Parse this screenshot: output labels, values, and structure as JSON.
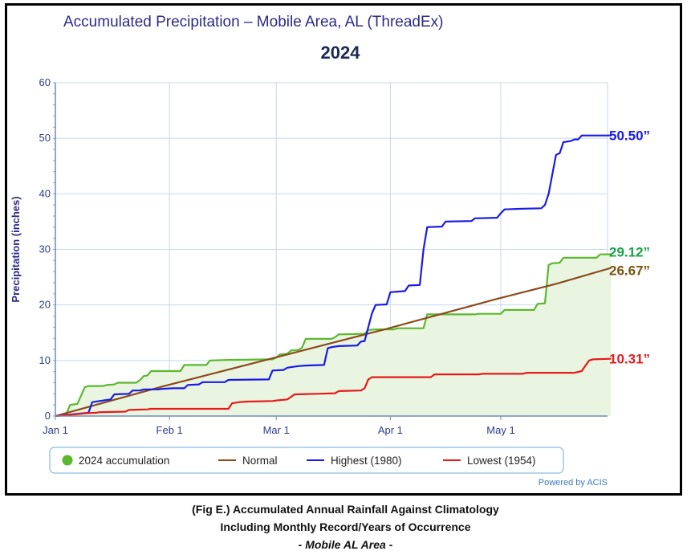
{
  "chart_data": {
    "type": "line",
    "title": "Accumulated Precipitation – Mobile Area, AL (ThreadEx)",
    "subtitle": "2024",
    "ylabel": "Precipitation (inches)",
    "xlabel": "",
    "ylim": [
      0,
      60
    ],
    "yticks": [
      0,
      10,
      20,
      30,
      40,
      50,
      60
    ],
    "xlim": [
      1,
      151
    ],
    "xticks": [
      {
        "label": "Jan 1",
        "day": 1
      },
      {
        "label": "Feb 1",
        "day": 32
      },
      {
        "label": "Mar 1",
        "day": 61
      },
      {
        "label": "Apr 1",
        "day": 92
      },
      {
        "label": "May 1",
        "day": 122
      }
    ],
    "grid": true,
    "legend_position": "bottom",
    "credit": "Powered by ACIS",
    "series": [
      {
        "name": "2024 accumulation",
        "color": "#5cb82e",
        "fill": "#e9f5e1",
        "area": true,
        "points": [
          [
            1,
            0
          ],
          [
            4,
            0.4
          ],
          [
            5,
            2.0
          ],
          [
            6,
            2.1
          ],
          [
            7,
            2.2
          ],
          [
            9,
            5.2
          ],
          [
            10,
            5.4
          ],
          [
            14,
            5.4
          ],
          [
            15,
            5.6
          ],
          [
            17,
            5.7
          ],
          [
            18,
            6.0
          ],
          [
            23,
            6.0
          ],
          [
            24,
            6.5
          ],
          [
            25,
            7.2
          ],
          [
            26,
            7.3
          ],
          [
            27,
            8.1
          ],
          [
            35,
            8.1
          ],
          [
            36,
            9.2
          ],
          [
            42,
            9.2
          ],
          [
            43,
            10.0
          ],
          [
            48,
            10.1
          ],
          [
            60,
            10.2
          ],
          [
            61,
            10.5
          ],
          [
            62,
            11.1
          ],
          [
            64,
            11.2
          ],
          [
            65,
            11.8
          ],
          [
            67,
            11.9
          ],
          [
            68,
            12.3
          ],
          [
            69,
            13.9
          ],
          [
            76,
            13.9
          ],
          [
            77,
            14.2
          ],
          [
            78,
            14.7
          ],
          [
            85,
            14.8
          ],
          [
            86,
            15.5
          ],
          [
            88,
            15.6
          ],
          [
            93,
            15.6
          ],
          [
            94,
            15.8
          ],
          [
            101,
            15.8
          ],
          [
            102,
            18.3
          ],
          [
            115,
            18.3
          ],
          [
            116,
            18.4
          ],
          [
            122,
            18.4
          ],
          [
            123,
            19.1
          ],
          [
            131,
            19.1
          ],
          [
            132,
            20.2
          ],
          [
            134,
            20.3
          ],
          [
            135,
            27.2
          ],
          [
            136,
            27.5
          ],
          [
            138,
            27.6
          ],
          [
            139,
            28.5
          ],
          [
            148,
            28.5
          ],
          [
            149,
            29.1
          ],
          [
            152,
            29.12
          ]
        ]
      },
      {
        "name": "Normal",
        "color": "#8b4a1c",
        "points": [
          [
            1,
            0
          ],
          [
            30,
            5.3
          ],
          [
            60,
            10.4
          ],
          [
            91,
            15.7
          ],
          [
            121,
            21.1
          ],
          [
            137,
            23.8
          ],
          [
            152,
            26.67
          ]
        ]
      },
      {
        "name": "Highest (1980)",
        "color": "#1a1ae6",
        "points": [
          [
            1,
            0
          ],
          [
            10,
            0.6
          ],
          [
            11,
            2.5
          ],
          [
            13,
            2.7
          ],
          [
            15,
            2.9
          ],
          [
            16,
            3.0
          ],
          [
            17,
            3.9
          ],
          [
            21,
            4.0
          ],
          [
            22,
            4.6
          ],
          [
            24,
            4.6
          ],
          [
            25,
            4.8
          ],
          [
            29,
            4.8
          ],
          [
            30,
            4.9
          ],
          [
            33,
            5.0
          ],
          [
            36,
            5.0
          ],
          [
            37,
            5.6
          ],
          [
            40,
            5.7
          ],
          [
            41,
            6.1
          ],
          [
            47,
            6.1
          ],
          [
            48,
            6.5
          ],
          [
            59,
            6.6
          ],
          [
            60,
            8.2
          ],
          [
            63,
            8.3
          ],
          [
            64,
            8.7
          ],
          [
            67,
            9.0
          ],
          [
            69,
            9.1
          ],
          [
            74,
            9.2
          ],
          [
            75,
            12.2
          ],
          [
            76,
            12.4
          ],
          [
            78,
            12.6
          ],
          [
            83,
            12.7
          ],
          [
            84,
            13.4
          ],
          [
            85,
            13.5
          ],
          [
            86,
            16.0
          ],
          [
            87,
            18.5
          ],
          [
            88,
            20.0
          ],
          [
            91,
            20.1
          ],
          [
            92,
            22.3
          ],
          [
            96,
            22.5
          ],
          [
            97,
            23.5
          ],
          [
            100,
            23.6
          ],
          [
            101,
            30.0
          ],
          [
            102,
            34.0
          ],
          [
            106,
            34.1
          ],
          [
            107,
            35.0
          ],
          [
            114,
            35.1
          ],
          [
            115,
            35.6
          ],
          [
            121,
            35.7
          ],
          [
            122,
            36.5
          ],
          [
            123,
            37.2
          ],
          [
            127,
            37.3
          ],
          [
            133,
            37.4
          ],
          [
            134,
            38.0
          ],
          [
            135,
            40.0
          ],
          [
            137,
            47.0
          ],
          [
            138,
            47.3
          ],
          [
            139,
            49.3
          ],
          [
            141,
            49.5
          ],
          [
            142,
            49.8
          ],
          [
            143,
            49.8
          ],
          [
            144,
            50.5
          ],
          [
            152,
            50.5
          ]
        ]
      },
      {
        "name": "Lowest (1954)",
        "color": "#e61a1a",
        "points": [
          [
            1,
            0
          ],
          [
            8,
            0.4
          ],
          [
            9,
            0.5
          ],
          [
            12,
            0.6
          ],
          [
            13,
            0.7
          ],
          [
            20,
            0.8
          ],
          [
            21,
            1.1
          ],
          [
            26,
            1.2
          ],
          [
            27,
            1.3
          ],
          [
            48,
            1.3
          ],
          [
            49,
            2.3
          ],
          [
            51,
            2.5
          ],
          [
            53,
            2.6
          ],
          [
            60,
            2.7
          ],
          [
            61,
            2.8
          ],
          [
            64,
            3.0
          ],
          [
            66,
            3.9
          ],
          [
            72,
            4.0
          ],
          [
            77,
            4.1
          ],
          [
            78,
            4.5
          ],
          [
            84,
            4.6
          ],
          [
            85,
            5.0
          ],
          [
            86,
            6.6
          ],
          [
            87,
            7.0
          ],
          [
            103,
            7.0
          ],
          [
            104,
            7.5
          ],
          [
            116,
            7.5
          ],
          [
            117,
            7.6
          ],
          [
            128,
            7.6
          ],
          [
            129,
            7.8
          ],
          [
            142,
            7.8
          ],
          [
            144,
            8.1
          ],
          [
            145,
            9.1
          ],
          [
            146,
            10.0
          ],
          [
            147,
            10.2
          ],
          [
            152,
            10.31
          ]
        ]
      }
    ],
    "end_labels": [
      {
        "text": "50.50”",
        "value": 50.5,
        "color": "#1a1ae6"
      },
      {
        "text": "29.12”",
        "value": 29.12,
        "color": "#1aa14a"
      },
      {
        "text": "26.67”",
        "value": 26.67,
        "color": "#7a5410"
      },
      {
        "text": "10.31”",
        "value": 10.31,
        "color": "#e61a1a"
      }
    ]
  },
  "caption": {
    "line1": "(Fig E.) Accumulated Annual Rainfall Against  Climatology",
    "line2": "Including Monthly Record/Years of Occurrence",
    "line3": "- Mobile AL Area -"
  }
}
